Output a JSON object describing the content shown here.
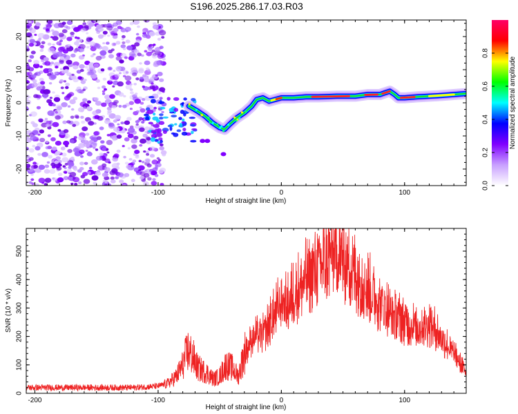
{
  "title": "S196.2025.286.17.03.R03",
  "chart_data": [
    {
      "type": "heatmap",
      "name": "spectrogram",
      "xlabel": "Height of straight line (km)",
      "ylabel": "Frequency (Hz)",
      "xlim": [
        -207,
        150
      ],
      "ylim": [
        -25,
        25
      ],
      "xticks": [
        -200,
        -100,
        0,
        100
      ],
      "yticks": [
        -20,
        -10,
        0,
        10,
        20
      ],
      "colorbar": {
        "label": "Normalized spectral amplitude",
        "range": [
          0,
          1
        ],
        "ticks": [
          "0.0",
          "0.2",
          "0.4",
          "0.6",
          "0.8"
        ],
        "colormap": [
          "#ffffff",
          "#c8a0ff",
          "#8000ff",
          "#0000ff",
          "#00ffff",
          "#00ff00",
          "#ffff00",
          "#ff0000",
          "#ff0066"
        ]
      },
      "ridge": {
        "x": [
          -75,
          -68,
          -62,
          -56,
          -50,
          -46,
          -42,
          -36,
          -30,
          -24,
          -20,
          -15,
          -10,
          -5,
          0,
          10,
          20,
          30,
          45,
          60,
          70,
          80,
          84,
          88,
          92,
          95,
          100,
          110,
          120,
          130,
          140,
          150
        ],
        "y": [
          -1,
          -2.5,
          -4,
          -6,
          -7.5,
          -8,
          -6.5,
          -4.5,
          -3,
          -1,
          1,
          1.5,
          0.5,
          1,
          1.5,
          1.5,
          1.8,
          1.8,
          2,
          2,
          2.5,
          2.5,
          3,
          3.5,
          2.5,
          1.5,
          1.5,
          1.8,
          2,
          2.2,
          2.5,
          2.8
        ]
      },
      "noise_region": {
        "x_from": -207,
        "x_to": -95,
        "y_from": -25,
        "y_to": 25
      }
    },
    {
      "type": "line",
      "name": "snr",
      "xlabel": "Height of straight line (km)",
      "ylabel": "SNR (10 * v/v)",
      "xlim": [
        -207,
        150
      ],
      "ylim": [
        0,
        580
      ],
      "xticks": [
        -200,
        -100,
        0,
        100
      ],
      "yticks": [
        0,
        100,
        200,
        300,
        400,
        500
      ],
      "series": [
        {
          "name": "SNR",
          "color": "#ee2222",
          "envelope_x": [
            -207,
            -180,
            -150,
            -120,
            -100,
            -92,
            -85,
            -80,
            -76,
            -72,
            -68,
            -60,
            -55,
            -50,
            -45,
            -40,
            -35,
            -30,
            -25,
            -20,
            -15,
            -10,
            -5,
            0,
            5,
            10,
            15,
            20,
            30,
            40,
            45,
            50,
            60,
            70,
            80,
            90,
            100,
            110,
            120,
            125,
            130,
            140,
            150
          ],
          "envelope_y": [
            20,
            20,
            20,
            20,
            25,
            35,
            60,
            100,
            150,
            130,
            90,
            70,
            50,
            60,
            100,
            90,
            60,
            140,
            200,
            220,
            220,
            260,
            300,
            350,
            330,
            380,
            400,
            430,
            480,
            520,
            530,
            500,
            450,
            400,
            340,
            300,
            270,
            250,
            260,
            240,
            210,
            150,
            80
          ]
        }
      ]
    }
  ]
}
